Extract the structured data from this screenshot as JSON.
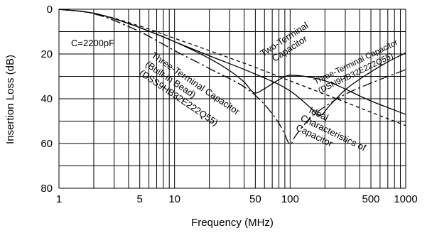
{
  "chart_data": {
    "type": "line",
    "xscale": "log",
    "xlim": [
      1,
      1000
    ],
    "ylim": [
      0,
      80
    ],
    "y_inverted": true,
    "grid": true,
    "xlabel": "Frequency (MHz)",
    "ylabel": "Insertion Loss (dB)",
    "xticks": [
      1,
      5,
      10,
      50,
      100,
      500,
      1000
    ],
    "xtick_labels": [
      "1",
      "5",
      "10",
      "50",
      "100",
      "500",
      "1000"
    ],
    "yticks": [
      0,
      20,
      40,
      60,
      80
    ],
    "ytick_labels": [
      "0",
      "20",
      "40",
      "60",
      "80"
    ],
    "grid_x": [
      1,
      2,
      3,
      4,
      5,
      6,
      7,
      8,
      9,
      10,
      20,
      30,
      40,
      50,
      60,
      70,
      80,
      90,
      100,
      200,
      300,
      400,
      500,
      600,
      700,
      800,
      900,
      1000
    ],
    "grid_y": [
      0,
      10,
      20,
      30,
      40,
      50,
      60,
      70,
      80
    ],
    "annotation": "C=2200pF",
    "series": [
      {
        "name": "Two-Terminal Capacitor",
        "style": "solid",
        "x": [
          1,
          2,
          5,
          10,
          20,
          30,
          40,
          50,
          60,
          80,
          100,
          200,
          500,
          1000
        ],
        "y": [
          0,
          1.8,
          8.2,
          14.5,
          22,
          27.5,
          32.5,
          37.5,
          35.5,
          31.5,
          29.5,
          32,
          41,
          47
        ]
      },
      {
        "name": "Three-Terminal Capacitor (DSN9HB32E222Q55)",
        "style": "solid",
        "x": [
          1,
          2,
          5,
          10,
          20,
          50,
          100,
          150,
          180,
          220,
          300,
          500,
          700,
          1000
        ],
        "y": [
          0,
          1.8,
          8.2,
          14.5,
          20.8,
          29,
          36.5,
          44,
          47.5,
          43,
          36,
          28,
          23.5,
          19.5
        ]
      },
      {
        "name": "Ideal Characteristics of Capacitor",
        "style": "dashed",
        "x": [
          1,
          2,
          5,
          10,
          20,
          50,
          100,
          200,
          500,
          1000
        ],
        "y": [
          0,
          1.8,
          7.5,
          13,
          18.5,
          26,
          32,
          38,
          46,
          52
        ]
      },
      {
        "name": "Three-Terminal Capacitor (Built-in Bead) (DSS9HB32E222Q55)",
        "style": "dashdot",
        "x": [
          1,
          2,
          5,
          10,
          20,
          50,
          80,
          90,
          100,
          110,
          150,
          200,
          300,
          500,
          1000
        ],
        "y": [
          0,
          2,
          10,
          18.5,
          26.5,
          38.5,
          51,
          56,
          60.5,
          57,
          48.5,
          43.5,
          38,
          33,
          27
        ]
      }
    ],
    "labels": {
      "two_terminal": [
        "Two-Terminal",
        "Capacitor"
      ],
      "three_terminal_bead": [
        "Three-Terminal Capacitor",
        "(Built-in Bead)",
        "(DSS9HB32E222Q55)"
      ],
      "three_terminal": [
        "Three-Terminal Capacitor",
        "(DSN9HB32E222Q55)"
      ],
      "ideal": [
        "Ideal",
        "Characteristics of",
        "Capacitor"
      ]
    }
  }
}
